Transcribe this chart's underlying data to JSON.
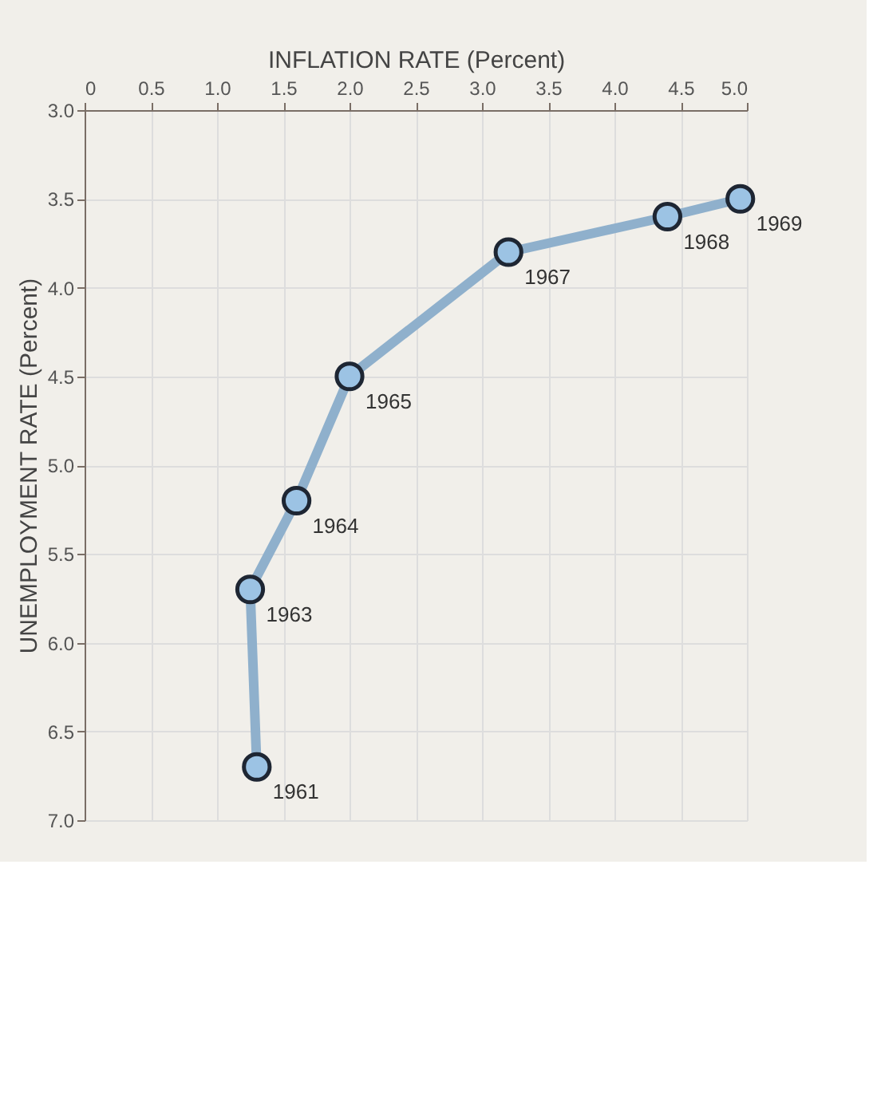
{
  "chart_data": {
    "type": "line",
    "xlabel": "INFLATION RATE (Percent)",
    "ylabel": "UNEMPLOYMENT RATE (Percent)",
    "x": [
      1.3,
      1.25,
      1.6,
      2.0,
      3.2,
      4.4,
      4.95
    ],
    "series": [
      {
        "color": "#8fb0cc",
        "values": [
          6.7,
          5.7,
          5.2,
          4.5,
          3.8,
          3.6,
          3.5
        ]
      }
    ],
    "xlim": [
      0,
      5
    ],
    "xticks": [
      0,
      0.5,
      {
        "value": 1,
        "label": "1.0"
      },
      1.5,
      {
        "value": 2,
        "label": "2.0"
      },
      2.5,
      {
        "value": 3,
        "label": "3.0"
      },
      3.5,
      {
        "value": 4,
        "label": "4.0"
      },
      4.5,
      {
        "value": 5,
        "label": "5.0"
      }
    ],
    "ylim": [
      7,
      3
    ],
    "yticks": [
      {
        "value": 3,
        "label": "3.0"
      },
      3.5,
      {
        "value": 4,
        "label": "4.0"
      },
      4.5,
      {
        "value": 5,
        "label": "5.0"
      },
      5.5,
      {
        "value": 6,
        "label": "6.0"
      },
      6.5,
      {
        "value": 7,
        "label": "7.0"
      }
    ],
    "annotations": [
      {
        "text": "1961",
        "x": 1.3,
        "y": 6.7
      },
      {
        "text": "1963",
        "x": 1.25,
        "y": 5.7
      },
      {
        "text": "1964",
        "x": 1.6,
        "y": 5.2
      },
      {
        "text": "1965",
        "x": 2.0,
        "y": 4.5
      },
      {
        "text": "1967",
        "x": 3.2,
        "y": 3.8
      },
      {
        "text": "1968",
        "x": 4.4,
        "y": 3.6
      },
      {
        "text": "1969",
        "x": 4.95,
        "y": 3.5
      }
    ],
    "marker": "circle",
    "line_style": "solid",
    "grid": true
  }
}
